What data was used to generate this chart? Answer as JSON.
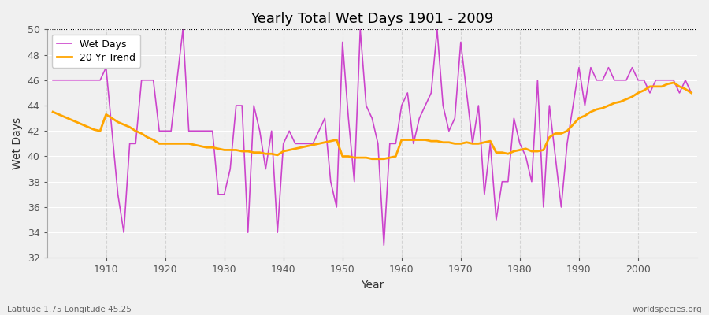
{
  "title": "Yearly Total Wet Days 1901 - 2009",
  "xlabel": "Year",
  "ylabel": "Wet Days",
  "subtitle_left": "Latitude 1.75 Longitude 45.25",
  "subtitle_right": "worldspecies.org",
  "line_color": "#CC44CC",
  "trend_color": "#FFA500",
  "bg_color": "#f0f0f0",
  "plot_bg_color": "#f0f0f0",
  "ylim": [
    32,
    50
  ],
  "yticks": [
    32,
    34,
    36,
    38,
    40,
    42,
    44,
    46,
    48,
    50
  ],
  "years": [
    1901,
    1902,
    1903,
    1904,
    1905,
    1906,
    1907,
    1908,
    1909,
    1910,
    1911,
    1912,
    1913,
    1914,
    1915,
    1916,
    1917,
    1918,
    1919,
    1920,
    1921,
    1922,
    1923,
    1924,
    1925,
    1926,
    1927,
    1928,
    1929,
    1930,
    1931,
    1932,
    1933,
    1934,
    1935,
    1936,
    1937,
    1938,
    1939,
    1940,
    1941,
    1942,
    1943,
    1944,
    1945,
    1946,
    1947,
    1948,
    1949,
    1950,
    1951,
    1952,
    1953,
    1954,
    1955,
    1956,
    1957,
    1958,
    1959,
    1960,
    1961,
    1962,
    1963,
    1964,
    1965,
    1966,
    1967,
    1968,
    1969,
    1970,
    1971,
    1972,
    1973,
    1974,
    1975,
    1976,
    1977,
    1978,
    1979,
    1980,
    1981,
    1982,
    1983,
    1984,
    1985,
    1986,
    1987,
    1988,
    1989,
    1990,
    1991,
    1992,
    1993,
    1994,
    1995,
    1996,
    1997,
    1998,
    1999,
    2000,
    2001,
    2002,
    2003,
    2004,
    2005,
    2006,
    2007,
    2008,
    2009
  ],
  "wet_days": [
    46,
    46,
    46,
    46,
    46,
    46,
    46,
    46,
    46,
    47,
    42,
    37,
    34,
    41,
    41,
    46,
    46,
    46,
    42,
    42,
    42,
    46,
    50,
    42,
    42,
    42,
    42,
    42,
    37,
    37,
    39,
    44,
    44,
    34,
    44,
    42,
    39,
    42,
    34,
    41,
    42,
    41,
    41,
    41,
    41,
    42,
    43,
    38,
    36,
    49,
    43,
    38,
    50,
    44,
    43,
    41,
    33,
    41,
    41,
    44,
    45,
    41,
    43,
    44,
    45,
    50,
    44,
    42,
    43,
    49,
    45,
    41,
    44,
    37,
    41,
    35,
    38,
    38,
    43,
    41,
    40,
    38,
    46,
    36,
    44,
    40,
    36,
    41,
    44,
    47,
    44,
    47,
    46,
    46,
    47,
    46,
    46,
    46,
    47,
    46,
    46,
    45,
    46,
    46,
    46,
    46,
    45,
    46,
    45
  ],
  "trend_values": [
    43.5,
    43.3,
    43.1,
    42.9,
    42.7,
    42.5,
    42.3,
    42.1,
    42.0,
    43.3,
    43.0,
    42.7,
    42.5,
    42.3,
    42.0,
    41.8,
    41.5,
    41.3,
    41.0,
    41.0,
    41.0,
    41.0,
    41.0,
    41.0,
    40.9,
    40.8,
    40.7,
    40.7,
    40.6,
    40.5,
    40.5,
    40.5,
    40.4,
    40.4,
    40.3,
    40.3,
    40.2,
    40.2,
    40.1,
    40.4,
    40.5,
    40.6,
    40.7,
    40.8,
    40.9,
    41.0,
    41.1,
    41.2,
    41.3,
    40.0,
    40.0,
    39.9,
    39.9,
    39.9,
    39.8,
    39.8,
    39.8,
    39.9,
    40.0,
    41.3,
    41.3,
    41.3,
    41.3,
    41.3,
    41.2,
    41.2,
    41.1,
    41.1,
    41.0,
    41.0,
    41.1,
    41.0,
    41.0,
    41.1,
    41.2,
    40.3,
    40.3,
    40.2,
    40.4,
    40.5,
    40.6,
    40.4,
    40.4,
    40.5,
    41.5,
    41.8,
    41.8,
    42.0,
    42.5,
    43.0,
    43.2,
    43.5,
    43.7,
    43.8,
    44.0,
    44.2,
    44.3,
    44.5,
    44.7,
    45.0,
    45.2,
    45.5,
    45.5,
    45.5,
    45.7,
    45.8,
    45.5,
    45.3,
    45.0
  ],
  "legend_labels": [
    "Wet Days",
    "20 Yr Trend"
  ]
}
